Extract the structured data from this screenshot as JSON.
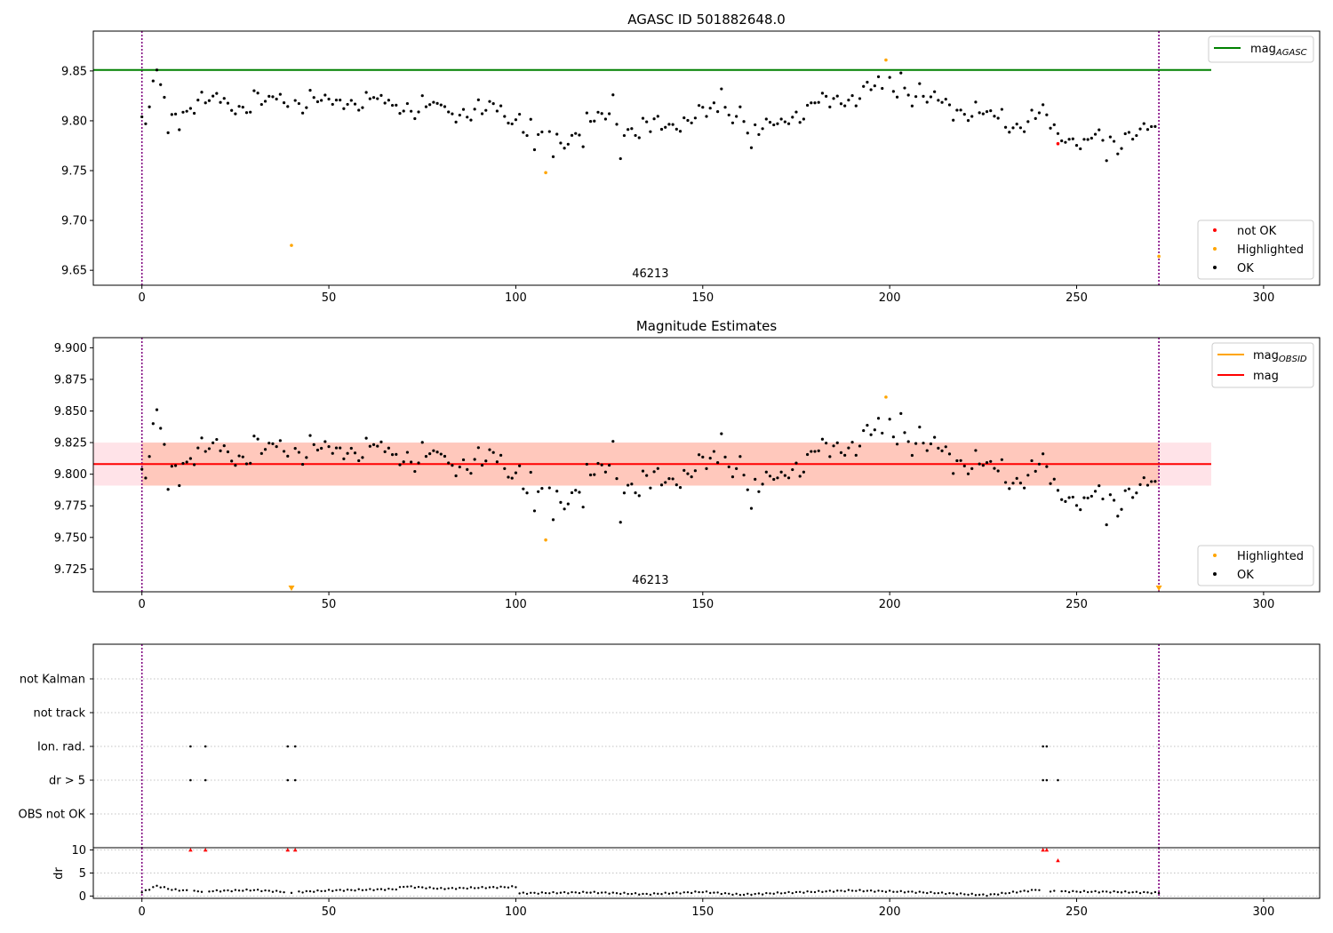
{
  "chart_data": [
    {
      "type": "scatter",
      "title": "AGASC ID 501882648.0",
      "xlim": [
        -13,
        315
      ],
      "ylim": [
        9.635,
        9.89
      ],
      "x_ticks": [
        0,
        50,
        100,
        150,
        200,
        250,
        300
      ],
      "y_ticks": [
        9.65,
        9.7,
        9.75,
        9.8,
        9.85
      ],
      "vlines": [
        0,
        272
      ],
      "obsid_label": "46213",
      "obsid_label_x": 136,
      "reference_line": {
        "label": "mag_AGASC",
        "value": 9.851,
        "x_range": [
          -13,
          286
        ],
        "color": "#008000"
      },
      "legend_location": "upper-right / lower-right",
      "series": [
        {
          "name": "not OK",
          "color": "#ff0000",
          "x": [
            245
          ],
          "y": [
            9.777
          ]
        },
        {
          "name": "Highlighted",
          "color": "#ffa500",
          "x": [
            40,
            108,
            199,
            272
          ],
          "y": [
            9.675,
            9.748,
            9.861,
            9.664
          ]
        },
        {
          "name": "OK",
          "color": "#000000",
          "x": [],
          "y": []
        }
      ]
    },
    {
      "type": "scatter",
      "title": "Magnitude Estimates",
      "xlim": [
        -13,
        315
      ],
      "ylim": [
        9.707,
        9.908
      ],
      "x_ticks": [
        0,
        50,
        100,
        150,
        200,
        250,
        300
      ],
      "y_ticks": [
        9.725,
        9.75,
        9.775,
        9.8,
        9.825,
        9.85,
        9.875,
        9.9
      ],
      "vlines": [
        0,
        272
      ],
      "obsid_label": "46213",
      "obsid_label_x": 136,
      "mag_line": {
        "label": "mag",
        "value": 9.808,
        "color": "#ff0000"
      },
      "mag_obsid_line": {
        "label": "mag_OBSID",
        "value": 9.808,
        "color": "#ffa500"
      },
      "band": {
        "low": 9.791,
        "high": 9.825,
        "x_range": [
          -13,
          286
        ]
      },
      "legend_location": "upper-right / lower-right",
      "series": [
        {
          "name": "Highlighted",
          "color": "#ffa500",
          "x": [
            40,
            108,
            199,
            272
          ],
          "y": [
            9.71,
            9.748,
            9.861,
            9.71
          ]
        },
        {
          "name": "OK",
          "color": "#000000",
          "x": [],
          "y": []
        }
      ]
    },
    {
      "type": "scatter",
      "title": "",
      "xlim": [
        -13,
        315
      ],
      "categories": [
        "OBS not OK",
        "dr > 5",
        "Ion. rad.",
        "not track",
        "not Kalman"
      ],
      "vlines": [
        0,
        272
      ],
      "flags": {
        "dr > 5": [
          13,
          17,
          39,
          41,
          241,
          242,
          245
        ],
        "Ion. rad.": [
          13,
          17,
          39,
          41,
          241,
          242
        ]
      }
    },
    {
      "type": "scatter",
      "title": "",
      "ylabel": "dr",
      "xlim": [
        -13,
        315
      ],
      "ylim": [
        -0.5,
        10.5
      ],
      "x_ticks": [
        0,
        50,
        100,
        150,
        200,
        250,
        300
      ],
      "y_ticks": [
        0,
        5,
        10
      ],
      "vlines": [
        0,
        272
      ],
      "series": [
        {
          "name": "dr > 5",
          "color": "#ff0000",
          "marker": "triangle",
          "x": [
            13,
            17,
            39,
            41,
            241,
            242,
            245
          ],
          "y": [
            10,
            10,
            10,
            10,
            10,
            10,
            7.7
          ]
        },
        {
          "name": "dr",
          "color": "#000000",
          "x": [],
          "y": []
        }
      ]
    }
  ]
}
